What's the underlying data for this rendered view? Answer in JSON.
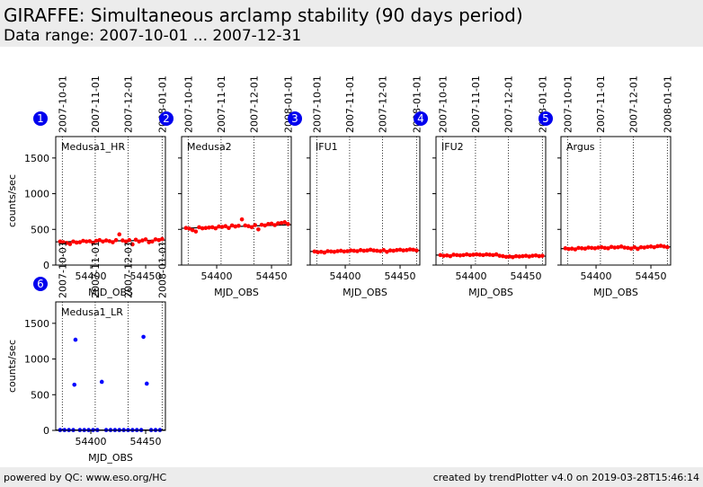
{
  "header": {
    "title": "GIRAFFE: Simultaneous arclamp stability (90 days period)",
    "subtitle": "Data range: 2007-10-01 ... 2007-12-31"
  },
  "footer": {
    "left": "powered by QC: www.eso.org/HC",
    "right": "created by trendPlotter v4.0 on 2019-03-28T15:46:14"
  },
  "colors": {
    "red_points": "#ff0000",
    "blue_points": "#0000ff",
    "badge": "#0000ee",
    "fit_line": "#000000"
  },
  "chart_data": [
    {
      "type": "scatter",
      "badge": "1",
      "label": "Medusa1_HR",
      "xlabel": "MJD_OBS",
      "ylabel": "counts/sec",
      "xlim": [
        54368,
        54468
      ],
      "ylim": [
        0,
        1800
      ],
      "xticks": [
        54400,
        54450
      ],
      "yticks": [
        0,
        500,
        1000,
        1500
      ],
      "date_ticks": [
        {
          "x": 54374,
          "label": "2007-10-01"
        },
        {
          "x": 54404,
          "label": "2007-11-01"
        },
        {
          "x": 54434,
          "label": "2007-12-01"
        },
        {
          "x": 54465,
          "label": "2008-01-01"
        }
      ],
      "show_y_axis_labels": true,
      "color": "red",
      "series": [
        {
          "name": "counts",
          "x": [
            54372,
            54375,
            54378,
            54381,
            54384,
            54387,
            54390,
            54393,
            54396,
            54399,
            54402,
            54405,
            54408,
            54411,
            54414,
            54417,
            54420,
            54423,
            54426,
            54429,
            54432,
            54435,
            54438,
            54441,
            54444,
            54447,
            54450,
            54453,
            54456,
            54459,
            54462,
            54465
          ],
          "y": [
            330,
            320,
            310,
            295,
            330,
            315,
            320,
            340,
            330,
            335,
            310,
            340,
            350,
            330,
            345,
            335,
            320,
            350,
            430,
            345,
            330,
            350,
            290,
            355,
            330,
            345,
            360,
            320,
            330,
            360,
            350,
            365
          ]
        }
      ],
      "fit": {
        "y_start": 325,
        "y_end": 350
      }
    },
    {
      "type": "scatter",
      "badge": "2",
      "label": "Medusa2",
      "xlabel": "MJD_OBS",
      "ylabel": "counts/sec",
      "xlim": [
        54368,
        54468
      ],
      "ylim": [
        0,
        1800
      ],
      "xticks": [
        54400,
        54450
      ],
      "yticks": [
        0,
        500,
        1000,
        1500
      ],
      "date_ticks": [
        {
          "x": 54374,
          "label": "2007-10-01"
        },
        {
          "x": 54404,
          "label": "2007-11-01"
        },
        {
          "x": 54434,
          "label": "2007-12-01"
        },
        {
          "x": 54465,
          "label": "2008-01-01"
        }
      ],
      "show_y_axis_labels": false,
      "color": "red",
      "series": [
        {
          "name": "counts",
          "x": [
            54372,
            54375,
            54378,
            54381,
            54384,
            54387,
            54390,
            54393,
            54396,
            54399,
            54402,
            54405,
            54408,
            54411,
            54414,
            54417,
            54420,
            54423,
            54426,
            54429,
            54432,
            54435,
            54438,
            54441,
            54444,
            54447,
            54450,
            54453,
            54456,
            54459,
            54462,
            54465
          ],
          "y": [
            520,
            510,
            490,
            470,
            530,
            515,
            520,
            525,
            530,
            515,
            540,
            535,
            545,
            520,
            555,
            540,
            550,
            640,
            555,
            545,
            530,
            560,
            500,
            565,
            555,
            575,
            580,
            560,
            585,
            590,
            600,
            575
          ]
        }
      ],
      "fit": {
        "y_start": 515,
        "y_end": 565
      }
    },
    {
      "type": "scatter",
      "badge": "3",
      "label": "IFU1",
      "xlabel": "MJD_OBS",
      "ylabel": "counts/sec",
      "xlim": [
        54368,
        54468
      ],
      "ylim": [
        0,
        1800
      ],
      "xticks": [
        54400,
        54450
      ],
      "yticks": [
        0,
        500,
        1000,
        1500
      ],
      "date_ticks": [
        {
          "x": 54374,
          "label": "2007-10-01"
        },
        {
          "x": 54404,
          "label": "2007-11-01"
        },
        {
          "x": 54434,
          "label": "2007-12-01"
        },
        {
          "x": 54465,
          "label": "2008-01-01"
        }
      ],
      "show_y_axis_labels": false,
      "color": "red",
      "series": [
        {
          "name": "counts",
          "x": [
            54372,
            54375,
            54378,
            54381,
            54384,
            54387,
            54390,
            54393,
            54396,
            54399,
            54402,
            54405,
            54408,
            54411,
            54414,
            54417,
            54420,
            54423,
            54426,
            54429,
            54432,
            54435,
            54438,
            54441,
            54444,
            54447,
            54450,
            54453,
            54456,
            54459,
            54462,
            54465
          ],
          "y": [
            190,
            180,
            185,
            175,
            195,
            190,
            185,
            195,
            200,
            190,
            195,
            205,
            200,
            195,
            210,
            200,
            205,
            215,
            205,
            200,
            195,
            210,
            185,
            205,
            200,
            210,
            215,
            205,
            210,
            220,
            215,
            205
          ]
        }
      ],
      "fit": {
        "y_start": 190,
        "y_end": 205
      }
    },
    {
      "type": "scatter",
      "badge": "4",
      "label": "IFU2",
      "xlabel": "MJD_OBS",
      "ylabel": "counts/sec",
      "xlim": [
        54368,
        54468
      ],
      "ylim": [
        0,
        1800
      ],
      "xticks": [
        54400,
        54450
      ],
      "yticks": [
        0,
        500,
        1000,
        1500
      ],
      "date_ticks": [
        {
          "x": 54374,
          "label": "2007-10-01"
        },
        {
          "x": 54404,
          "label": "2007-11-01"
        },
        {
          "x": 54434,
          "label": "2007-12-01"
        },
        {
          "x": 54465,
          "label": "2008-01-01"
        }
      ],
      "show_y_axis_labels": false,
      "color": "red",
      "series": [
        {
          "name": "counts",
          "x": [
            54372,
            54375,
            54378,
            54381,
            54384,
            54387,
            54390,
            54393,
            54396,
            54399,
            54402,
            54405,
            54408,
            54411,
            54414,
            54417,
            54420,
            54423,
            54426,
            54429,
            54432,
            54435,
            54438,
            54441,
            54444,
            54447,
            54450,
            54453,
            54456,
            54459,
            54462,
            54465
          ],
          "y": [
            140,
            130,
            135,
            125,
            145,
            140,
            135,
            140,
            150,
            140,
            145,
            150,
            145,
            140,
            150,
            145,
            140,
            150,
            130,
            125,
            115,
            120,
            110,
            125,
            120,
            125,
            130,
            120,
            130,
            135,
            125,
            130
          ]
        }
      ],
      "fit": {
        "y_start": 140,
        "y_end": 125
      }
    },
    {
      "type": "scatter",
      "badge": "5",
      "label": "Argus",
      "xlabel": "MJD_OBS",
      "ylabel": "counts/sec",
      "xlim": [
        54368,
        54468
      ],
      "ylim": [
        0,
        1800
      ],
      "xticks": [
        54400,
        54450
      ],
      "yticks": [
        0,
        500,
        1000,
        1500
      ],
      "date_ticks": [
        {
          "x": 54374,
          "label": "2007-10-01"
        },
        {
          "x": 54404,
          "label": "2007-11-01"
        },
        {
          "x": 54434,
          "label": "2007-12-01"
        },
        {
          "x": 54465,
          "label": "2008-01-01"
        }
      ],
      "show_y_axis_labels": false,
      "color": "red",
      "series": [
        {
          "name": "counts",
          "x": [
            54372,
            54375,
            54378,
            54381,
            54384,
            54387,
            54390,
            54393,
            54396,
            54399,
            54402,
            54405,
            54408,
            54411,
            54414,
            54417,
            54420,
            54423,
            54426,
            54429,
            54432,
            54435,
            54438,
            54441,
            54444,
            54447,
            54450,
            54453,
            54456,
            54459,
            54462,
            54465
          ],
          "y": [
            235,
            225,
            230,
            220,
            240,
            235,
            230,
            245,
            240,
            235,
            245,
            250,
            240,
            235,
            255,
            245,
            250,
            260,
            245,
            240,
            230,
            250,
            225,
            250,
            245,
            255,
            260,
            250,
            265,
            270,
            260,
            250
          ]
        }
      ],
      "fit": {
        "y_start": 230,
        "y_end": 255
      }
    },
    {
      "type": "scatter",
      "badge": "6",
      "label": "Medusa1_LR",
      "xlabel": "MJD_OBS",
      "ylabel": "counts/sec",
      "xlim": [
        54368,
        54468
      ],
      "ylim": [
        0,
        1800
      ],
      "xticks": [
        54400,
        54450
      ],
      "yticks": [
        0,
        500,
        1000,
        1500
      ],
      "date_ticks": [
        {
          "x": 54374,
          "label": "2007-10-01"
        },
        {
          "x": 54404,
          "label": "2007-11-01"
        },
        {
          "x": 54434,
          "label": "2007-12-01"
        },
        {
          "x": 54465,
          "label": "2008-01-01"
        }
      ],
      "show_y_axis_labels": true,
      "color": "blue",
      "series": [
        {
          "name": "counts",
          "x": [
            54385,
            54386,
            54410,
            54448,
            54451,
            54372,
            54376,
            54380,
            54384,
            54390,
            54394,
            54398,
            54402,
            54406,
            54414,
            54418,
            54422,
            54426,
            54430,
            54434,
            54438,
            54442,
            54446,
            54455,
            54459,
            54463
          ],
          "y": [
            640,
            1270,
            680,
            1310,
            655,
            5,
            5,
            5,
            5,
            5,
            5,
            5,
            5,
            5,
            5,
            5,
            5,
            5,
            5,
            5,
            5,
            5,
            5,
            5,
            5,
            5
          ]
        }
      ],
      "fit": {
        "y_start": 5,
        "y_end": 5
      }
    }
  ]
}
